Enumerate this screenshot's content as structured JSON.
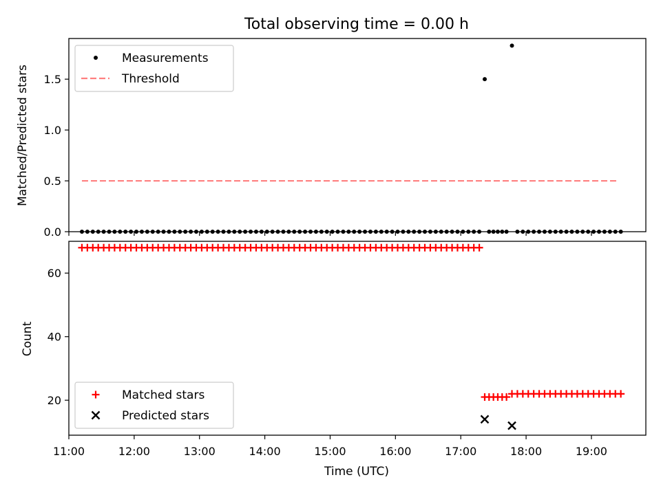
{
  "chart_data": [
    {
      "type": "scatter",
      "title": "Total observing time = 0.00 h",
      "xlabel": "",
      "ylabel": "Matched/Predicted stars",
      "xlim": [
        "11:00",
        "19:50"
      ],
      "ylim": [
        0,
        1.9
      ],
      "x_tick_labels_visible": false,
      "yticks": [
        0.0,
        0.5,
        1.0,
        1.5
      ],
      "ytick_labels": [
        "0.0",
        "0.5",
        "1.0",
        "1.5"
      ],
      "legend": {
        "placement": "upper left",
        "entries": [
          "Measurements",
          "Threshold"
        ]
      },
      "series": [
        {
          "name": "Measurements",
          "marker": "dot",
          "color": "#000000",
          "points": [
            {
              "x_start": "11:12",
              "x_end": "17:18",
              "step_minutes": 5,
              "y": 0
            },
            {
              "x": "17:22",
              "y": 1.5
            },
            {
              "x_start": "17:26",
              "x_end": "17:42",
              "step_minutes": 4,
              "y": 0
            },
            {
              "x": "17:47",
              "y": 1.83
            },
            {
              "x_start": "17:52",
              "x_end": "19:27",
              "step_minutes": 5,
              "y": 0
            }
          ]
        },
        {
          "name": "Threshold",
          "line_style": "dashed",
          "color": "#ff7f7f",
          "x": [
            "11:12",
            "19:24"
          ],
          "y": [
            0.5,
            0.5
          ]
        }
      ]
    },
    {
      "type": "scatter",
      "title": "",
      "xlabel": "Time (UTC)",
      "ylabel": "Count",
      "xlim": [
        "11:00",
        "19:50"
      ],
      "ylim": [
        9,
        70
      ],
      "xtick_labels": [
        "11:00",
        "12:00",
        "13:00",
        "14:00",
        "15:00",
        "16:00",
        "17:00",
        "18:00",
        "19:00"
      ],
      "yticks": [
        20,
        40,
        60
      ],
      "ytick_labels": [
        "20",
        "40",
        "60"
      ],
      "legend": {
        "placement": "lower left",
        "entries": [
          "Matched stars",
          "Predicted stars"
        ]
      },
      "series": [
        {
          "name": "Matched stars",
          "marker": "plus",
          "color": "#ff0000",
          "points": [
            {
              "x_start": "11:12",
              "x_end": "17:18",
              "step_minutes": 5,
              "y": 68
            },
            {
              "x_start": "17:22",
              "x_end": "17:42",
              "step_minutes": 4,
              "y": 21
            },
            {
              "x_start": "17:47",
              "x_end": "19:27",
              "step_minutes": 5,
              "y": 22
            }
          ]
        },
        {
          "name": "Predicted stars",
          "marker": "x",
          "color": "#000000",
          "points": [
            {
              "x": "17:22",
              "y": 14
            },
            {
              "x": "17:47",
              "y": 12
            }
          ]
        }
      ]
    }
  ]
}
